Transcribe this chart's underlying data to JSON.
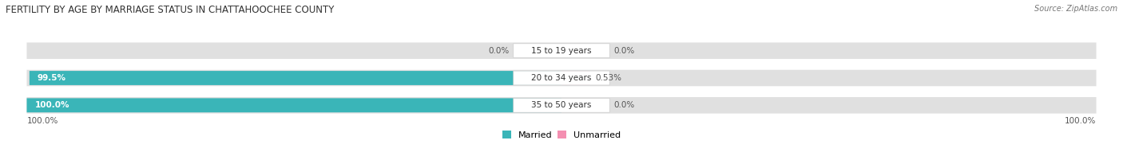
{
  "title": "FERTILITY BY AGE BY MARRIAGE STATUS IN CHATTAHOOCHEE COUNTY",
  "source": "Source: ZipAtlas.com",
  "categories": [
    "15 to 19 years",
    "20 to 34 years",
    "35 to 50 years"
  ],
  "married_values": [
    0.0,
    99.5,
    100.0
  ],
  "unmarried_values": [
    0.0,
    0.53,
    0.0
  ],
  "married_labels": [
    "0.0%",
    "99.5%",
    "100.0%"
  ],
  "unmarried_labels": [
    "0.0%",
    "0.53%",
    "0.0%"
  ],
  "married_color": "#3ab5b8",
  "unmarried_color": "#f48fb1",
  "bar_bg_color": "#e0e0e0",
  "bg_color": "#ffffff",
  "title_fontsize": 8.5,
  "source_fontsize": 7,
  "label_fontsize": 7.5,
  "category_fontsize": 7.5,
  "legend_fontsize": 8,
  "axis_label_left": "100.0%",
  "axis_label_right": "100.0%",
  "max_val": 100.0
}
